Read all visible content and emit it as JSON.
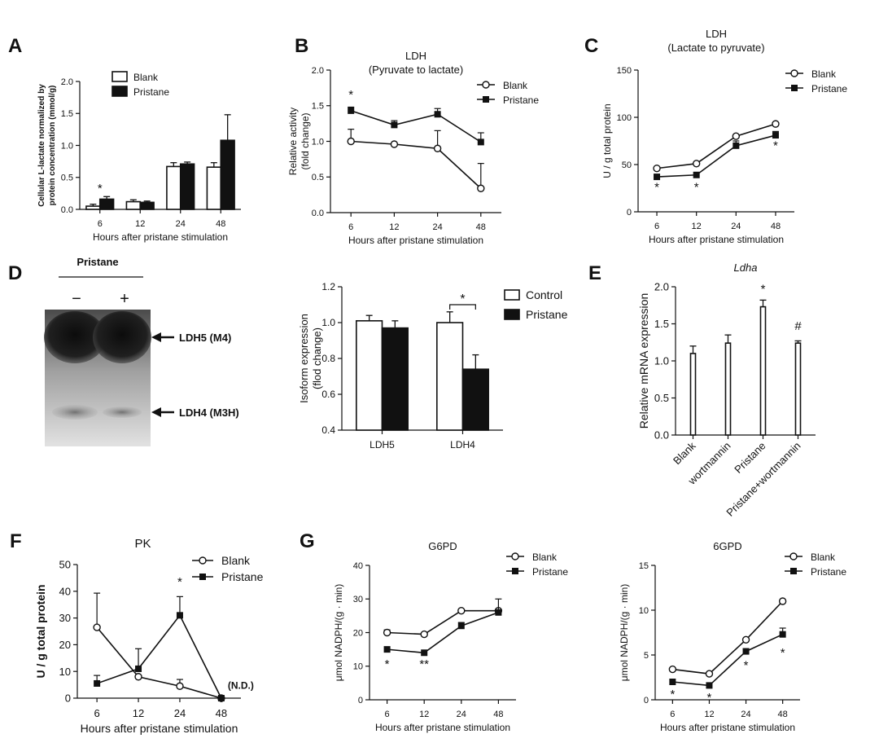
{
  "figure": {
    "panel_letters": {
      "A": "A",
      "B": "B",
      "C": "C",
      "D": "D",
      "E": "E",
      "F": "F",
      "G": "G"
    },
    "gel": {
      "treatment_label": "Pristane",
      "lane_minus": "−",
      "lane_plus": "+",
      "band_top": "LDH5 (M4)",
      "band_bottom": "LDH4 (M3H)",
      "gel_colors": {
        "background": "#d4d4d4",
        "band_dark": "#151515",
        "band_light": "#6a6a6a"
      }
    }
  },
  "chart_data": [
    {
      "id": "A",
      "type": "bar",
      "title": "",
      "subtitle": "",
      "xlabel": "Hours after pristane stimulation",
      "ylabel": [
        "Cellular L-lactate normalized by",
        "protein concentration (mmol/g)"
      ],
      "categories": [
        "6",
        "12",
        "24",
        "48"
      ],
      "ylim": [
        0,
        2.0
      ],
      "yticks": [
        "0.0",
        "0.5",
        "1.0",
        "1.5",
        "2.0"
      ],
      "series": [
        {
          "name": "Blank",
          "fill": "#ffffff",
          "values": [
            0.05,
            0.12,
            0.67,
            0.66
          ],
          "errors": [
            0.03,
            0.03,
            0.06,
            0.07
          ]
        },
        {
          "name": "Pristane",
          "fill": "#111111",
          "values": [
            0.16,
            0.11,
            0.71,
            1.08
          ],
          "errors": [
            0.04,
            0.02,
            0.03,
            0.4
          ]
        }
      ],
      "annotations": [
        {
          "text": "*",
          "category": 0,
          "y": 0.27
        }
      ],
      "legend": "top-left"
    },
    {
      "id": "B",
      "type": "line",
      "title": "LDH",
      "subtitle": "(Pyruvate to lactate)",
      "xlabel": "Hours after pristane stimulation",
      "ylabel": [
        "Relative activity",
        "(fold change)"
      ],
      "categories": [
        "6",
        "12",
        "24",
        "48"
      ],
      "ylim": [
        0,
        2.0
      ],
      "yticks": [
        "0.0",
        "0.5",
        "1.0",
        "1.5",
        "2.0"
      ],
      "series": [
        {
          "name": "Blank",
          "marker": "open-circle",
          "values": [
            1.0,
            0.96,
            0.9,
            0.34
          ],
          "errors": [
            0.17,
            0,
            0.25,
            0.35
          ]
        },
        {
          "name": "Pristane",
          "marker": "filled-square",
          "values": [
            1.43,
            1.23,
            1.38,
            0.99
          ],
          "errors": [
            0.05,
            0.06,
            0.08,
            0.13
          ]
        }
      ],
      "annotations": [
        {
          "text": "*",
          "category": 0,
          "y": 1.6
        }
      ],
      "legend": "top-right"
    },
    {
      "id": "C",
      "type": "line",
      "title": "LDH",
      "subtitle": "(Lactate to pyruvate)",
      "xlabel": "Hours after pristane stimulation",
      "ylabel": [
        "U / g total protein"
      ],
      "categories": [
        "6",
        "12",
        "24",
        "48"
      ],
      "ylim": [
        0,
        150
      ],
      "yticks": [
        "0",
        "50",
        "100",
        "150"
      ],
      "series": [
        {
          "name": "Blank",
          "marker": "open-circle",
          "values": [
            46,
            51,
            80,
            93
          ],
          "errors": [
            0,
            0,
            0,
            0
          ]
        },
        {
          "name": "Pristane",
          "marker": "filled-square",
          "values": [
            37,
            39,
            70,
            81
          ],
          "errors": [
            0,
            0,
            5,
            4
          ]
        }
      ],
      "annotations": [
        {
          "text": "*",
          "category": 0,
          "y": 22
        },
        {
          "text": "*",
          "category": 1,
          "y": 22
        },
        {
          "text": "*",
          "category": 3,
          "y": 66
        }
      ],
      "legend": "top-right"
    },
    {
      "id": "D",
      "type": "bar",
      "title": "",
      "subtitle": "",
      "xlabel": "",
      "ylabel": [
        "Isoform expression",
        "(flod change)"
      ],
      "categories": [
        "LDH5",
        "LDH4"
      ],
      "ylim": [
        0.4,
        1.2
      ],
      "yticks": [
        "0.4",
        "0.6",
        "0.8",
        "1.0",
        "1.2"
      ],
      "series": [
        {
          "name": "Control",
          "fill": "#ffffff",
          "values": [
            1.01,
            1.0
          ],
          "errors": [
            0.03,
            0.06
          ]
        },
        {
          "name": "Pristane",
          "fill": "#111111",
          "values": [
            0.97,
            0.74
          ],
          "errors": [
            0.04,
            0.08
          ]
        }
      ],
      "annotations": [
        {
          "text": "*",
          "bracket": [
            1,
            0,
            1,
            1
          ],
          "y": 1.1
        }
      ],
      "legend": "top-right"
    },
    {
      "id": "E",
      "type": "bar",
      "title": "Ldha",
      "subtitle": "",
      "xlabel": "",
      "ylabel": [
        "Relative mRNA expression"
      ],
      "categories": [
        "Blank",
        "wortmannin",
        "Pristane",
        "Pristane+wortmannin"
      ],
      "ylim": [
        0,
        2.0
      ],
      "yticks": [
        "0.0",
        "0.5",
        "1.0",
        "1.5",
        "2.0"
      ],
      "series": [
        {
          "name": "",
          "fill": "#ffffff",
          "values": [
            1.1,
            1.24,
            1.73,
            1.24
          ],
          "errors": [
            0.1,
            0.11,
            0.09,
            0.03
          ]
        }
      ],
      "annotations": [
        {
          "text": "*",
          "category": 2,
          "y": 1.92
        },
        {
          "text": "#",
          "category": 3,
          "y": 1.42
        }
      ],
      "legend": "none"
    },
    {
      "id": "F",
      "type": "line",
      "title": "PK",
      "subtitle": "",
      "xlabel": "Hours after pristane stimulation",
      "ylabel": [
        "U / g total protein"
      ],
      "categories": [
        "6",
        "12",
        "24",
        "48"
      ],
      "ylim": [
        0,
        50
      ],
      "yticks": [
        "0",
        "10",
        "20",
        "30",
        "40",
        "50"
      ],
      "series": [
        {
          "name": "Blank",
          "marker": "open-circle",
          "values": [
            26.5,
            8,
            4.5,
            0
          ],
          "errors": [
            12.8,
            0,
            2.5,
            0
          ]
        },
        {
          "name": "Pristane",
          "marker": "filled-square",
          "values": [
            5.5,
            11,
            31,
            0
          ],
          "errors": [
            3,
            7.5,
            7,
            0
          ]
        }
      ],
      "annotations": [
        {
          "text": "*",
          "category": 2,
          "y": 42
        },
        {
          "text": "(N.D.)",
          "category": 3,
          "y": 3.5
        }
      ],
      "legend": "top-right"
    },
    {
      "id": "G1",
      "type": "line",
      "title": "G6PD",
      "subtitle": "",
      "xlabel": "Hours after pristane stimulation",
      "ylabel": [
        "μmol NADPH/(g · min)"
      ],
      "categories": [
        "6",
        "12",
        "24",
        "48"
      ],
      "ylim": [
        0,
        40
      ],
      "yticks": [
        "0",
        "10",
        "20",
        "30",
        "40"
      ],
      "series": [
        {
          "name": "Blank",
          "marker": "open-circle",
          "values": [
            20,
            19.5,
            26.5,
            26.5
          ],
          "errors": [
            0.8,
            0,
            0,
            0
          ]
        },
        {
          "name": "Pristane",
          "marker": "filled-square",
          "values": [
            15,
            14,
            22,
            26
          ],
          "errors": [
            0,
            0,
            1,
            4
          ]
        }
      ],
      "annotations": [
        {
          "text": "*",
          "category": 0,
          "y": 9.5
        },
        {
          "text": "**",
          "category": 1,
          "y": 9.5
        }
      ],
      "legend": "top-right"
    },
    {
      "id": "G2",
      "type": "line",
      "title": "6GPD",
      "subtitle": "",
      "xlabel": "Hours after pristane stimulation",
      "ylabel": [
        "μmol NADPH/(g · min)"
      ],
      "categories": [
        "6",
        "12",
        "24",
        "48"
      ],
      "ylim": [
        0,
        15
      ],
      "yticks": [
        "0",
        "5",
        "10",
        "15"
      ],
      "series": [
        {
          "name": "Blank",
          "marker": "open-circle",
          "values": [
            3.4,
            2.9,
            6.7,
            11
          ],
          "errors": [
            0,
            0,
            0,
            0
          ]
        },
        {
          "name": "Pristane",
          "marker": "filled-square",
          "values": [
            2,
            1.6,
            5.4,
            7.3
          ],
          "errors": [
            0,
            0,
            0.3,
            0.7
          ]
        }
      ],
      "annotations": [
        {
          "text": "*",
          "category": 0,
          "y": 0.2
        },
        {
          "text": "*",
          "category": 1,
          "y": -0.2
        },
        {
          "text": "*",
          "category": 2,
          "y": 3.4
        },
        {
          "text": "*",
          "category": 3,
          "y": 4.8
        }
      ],
      "legend": "top-right"
    }
  ]
}
